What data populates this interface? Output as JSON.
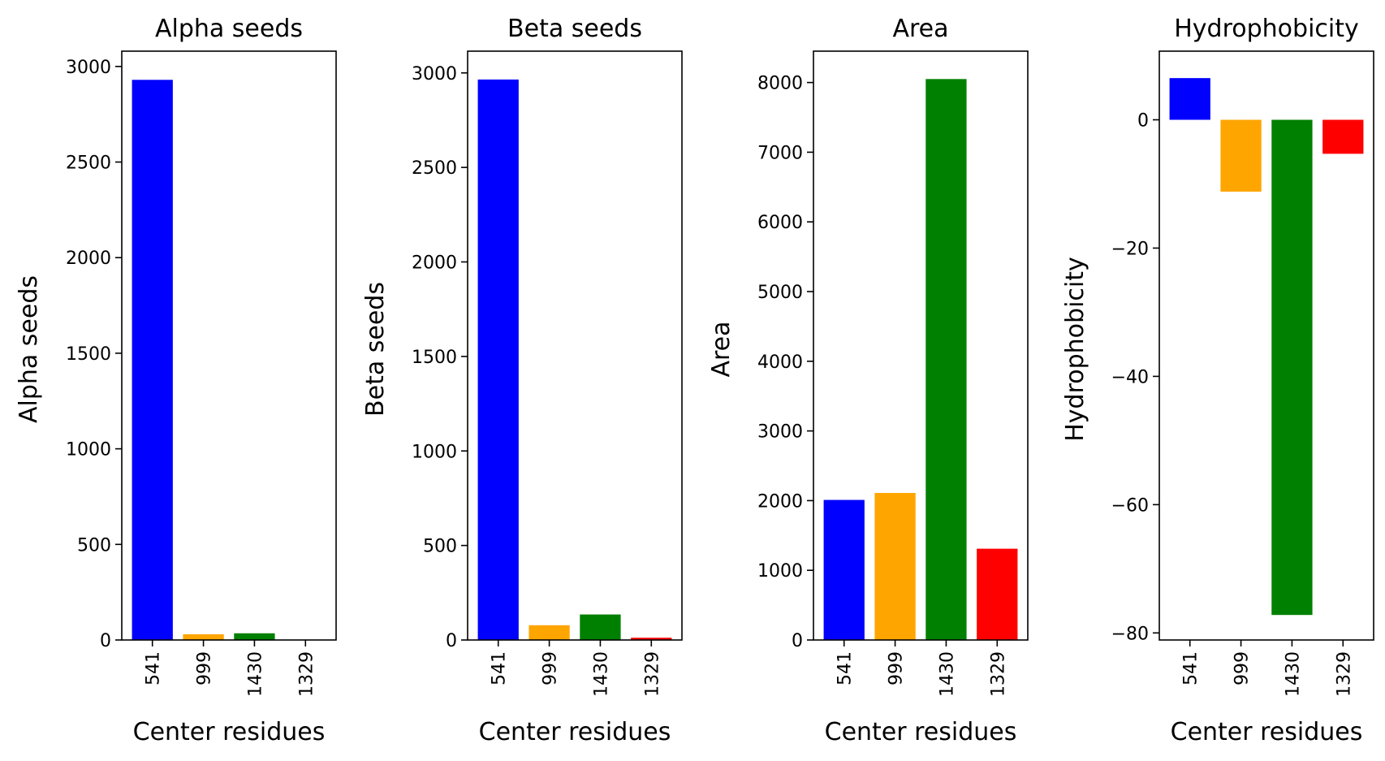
{
  "chart_data": [
    {
      "type": "bar",
      "title": "Alpha seeds",
      "xlabel": "Center residues",
      "ylabel": "Alpha seeds",
      "categories": [
        "541",
        "999",
        "1430",
        "1329"
      ],
      "values": [
        2930,
        30,
        35,
        0
      ],
      "colors": [
        "#0000ff",
        "#ffa500",
        "#008000",
        "#ff0000"
      ],
      "ylim": [
        0,
        3080
      ],
      "yticks": [
        0,
        500,
        1000,
        1500,
        2000,
        2500,
        3000
      ],
      "ytick_labels": [
        "0",
        "500",
        "1000",
        "1500",
        "2000",
        "2500",
        "3000"
      ]
    },
    {
      "type": "bar",
      "title": "Beta seeds",
      "xlabel": "Center residues",
      "ylabel": "Beta seeds",
      "categories": [
        "541",
        "999",
        "1430",
        "1329"
      ],
      "values": [
        2965,
        78,
        135,
        12
      ],
      "colors": [
        "#0000ff",
        "#ffa500",
        "#008000",
        "#ff0000"
      ],
      "ylim": [
        0,
        3115
      ],
      "yticks": [
        0,
        500,
        1000,
        1500,
        2000,
        2500,
        3000
      ],
      "ytick_labels": [
        "0",
        "500",
        "1000",
        "1500",
        "2000",
        "2500",
        "3000"
      ]
    },
    {
      "type": "bar",
      "title": "Area",
      "xlabel": "Center residues",
      "ylabel": "Area",
      "categories": [
        "541",
        "999",
        "1430",
        "1329"
      ],
      "values": [
        2010,
        2110,
        8050,
        1310
      ],
      "colors": [
        "#0000ff",
        "#ffa500",
        "#008000",
        "#ff0000"
      ],
      "ylim": [
        0,
        8450
      ],
      "yticks": [
        0,
        1000,
        2000,
        3000,
        4000,
        5000,
        6000,
        7000,
        8000
      ],
      "ytick_labels": [
        "0",
        "1000",
        "2000",
        "3000",
        "4000",
        "5000",
        "6000",
        "7000",
        "8000"
      ]
    },
    {
      "type": "bar",
      "title": "Hydrophobicity",
      "xlabel": "Center residues",
      "ylabel": "Hydrophobicity",
      "categories": [
        "541",
        "999",
        "1430",
        "1329"
      ],
      "values": [
        6.5,
        -11.2,
        -77.2,
        -5.3
      ],
      "colors": [
        "#0000ff",
        "#ffa500",
        "#008000",
        "#ff0000"
      ],
      "ylim": [
        -81.1,
        10.7
      ],
      "yticks": [
        0,
        -20,
        -40,
        -60,
        -80
      ],
      "ytick_labels": [
        "0",
        "−20",
        "−40",
        "−60",
        "−80"
      ]
    }
  ]
}
